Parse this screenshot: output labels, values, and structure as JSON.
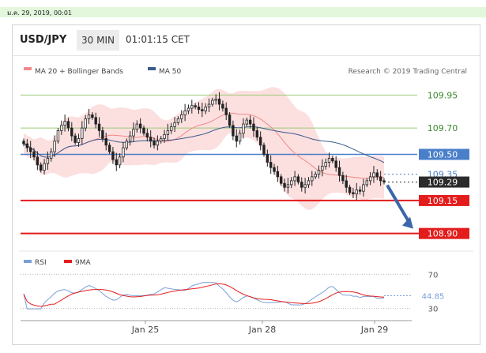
{
  "timestamp": "ม.ค. 29, 2019, 00:01",
  "header": {
    "pair": "USD/JPY",
    "timeframe": "30 MIN",
    "clock": "01:01:15 CET"
  },
  "legend": {
    "ma20": "MA 20 + Bollinger Bands",
    "ma50": "MA 50",
    "credit": "Research © 2019 Trading Central",
    "rsi": "RSI",
    "ma9": "9MA"
  },
  "colors": {
    "ma20": "#f08a8a",
    "ma50": "#3a5a8c",
    "band_fill": "#fbd9d9",
    "green_level": "#9ccc7a",
    "blue_level": "#4a7fc9",
    "red_level": "#e31c1c",
    "dark_label": "#2b2b2b",
    "rsi": "#7a9fd8",
    "rsi_ma": "#e31c1c",
    "arrow": "#3b67a8"
  },
  "chart_data": [
    {
      "type": "candlestick",
      "title": "USD/JPY",
      "x_ticks": [
        "Jan 25",
        "Jan 28",
        "Jan 29"
      ],
      "ylim": [
        108.85,
        110.0
      ],
      "levels": [
        {
          "value": 109.95,
          "label": "109.95",
          "kind": "resistance",
          "color": "#9ccc7a"
        },
        {
          "value": 109.7,
          "label": "109.70",
          "kind": "resistance",
          "color": "#9ccc7a"
        },
        {
          "value": 109.5,
          "label": "109.50",
          "kind": "pivot",
          "color": "#4a7fc9"
        },
        {
          "value": 109.35,
          "label": "109.35",
          "kind": "dotted",
          "color": "#4a7fc9"
        },
        {
          "value": 109.29,
          "label": "109.29",
          "kind": "last",
          "color": "#2b2b2b"
        },
        {
          "value": 109.15,
          "label": "109.15",
          "kind": "support",
          "color": "#e31c1c"
        },
        {
          "value": 108.9,
          "label": "108.90",
          "kind": "support",
          "color": "#e31c1c"
        }
      ],
      "close": [
        109.58,
        109.55,
        109.52,
        109.48,
        109.42,
        109.38,
        109.43,
        109.47,
        109.52,
        109.6,
        109.68,
        109.72,
        109.75,
        109.7,
        109.64,
        109.59,
        109.62,
        109.7,
        109.77,
        109.8,
        109.78,
        109.73,
        109.68,
        109.62,
        109.57,
        109.52,
        109.46,
        109.42,
        109.48,
        109.55,
        109.6,
        109.64,
        109.69,
        109.73,
        109.7,
        109.66,
        109.63,
        109.6,
        109.57,
        109.6,
        109.62,
        109.65,
        109.68,
        109.71,
        109.74,
        109.77,
        109.8,
        109.83,
        109.85,
        109.87,
        109.86,
        109.84,
        109.83,
        109.86,
        109.88,
        109.91,
        109.92,
        109.88,
        109.85,
        109.8,
        109.72,
        109.64,
        109.6,
        109.66,
        109.73,
        109.76,
        109.73,
        109.68,
        109.63,
        109.57,
        109.5,
        109.44,
        109.4,
        109.37,
        109.33,
        109.28,
        109.25,
        109.27,
        109.3,
        109.33,
        109.29,
        109.25,
        109.27,
        109.3,
        109.33,
        109.35,
        109.38,
        109.41,
        109.44,
        109.47,
        109.45,
        109.4,
        109.34,
        109.3,
        109.25,
        109.21,
        109.2,
        109.23,
        109.22,
        109.27,
        109.3,
        109.33,
        109.36,
        109.33,
        109.3,
        109.29
      ],
      "moving_averages": [
        "MA 20 + Bollinger Bands",
        "MA 50"
      ],
      "projection": {
        "from": 109.29,
        "to": 108.9
      }
    },
    {
      "type": "line",
      "title": "RSI",
      "series": [
        {
          "name": "RSI"
        },
        {
          "name": "9MA"
        }
      ],
      "ylim": [
        25,
        75
      ],
      "ticks": [
        70,
        30
      ],
      "last_value": 44.85
    }
  ]
}
